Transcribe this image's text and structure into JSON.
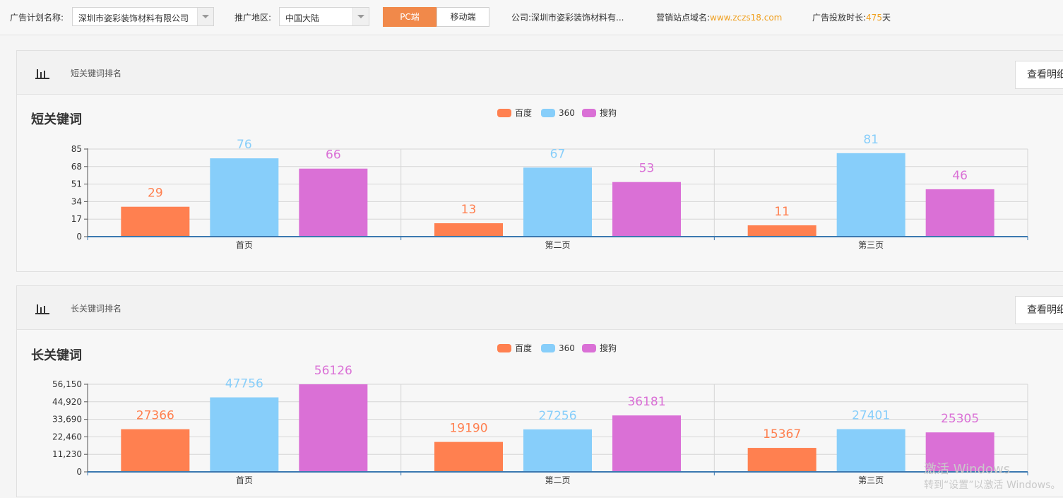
{
  "topbar": {
    "plan_label": "广告计划名称:",
    "plan_value": "深圳市姿彩装饰材料有限公司",
    "region_label": "推广地区:",
    "region_value": "中国大陆",
    "pc_label": "PC端",
    "mobile_label": "移动端",
    "company_label": "公司:",
    "company_value": "深圳市姿彩装饰材料有...",
    "domain_label": "营销站点域名:",
    "domain_value": "www.zczs18.com",
    "duration_label": "广告投放时长:",
    "duration_value": "475",
    "duration_unit": "天"
  },
  "colors": {
    "baidu": "#ff8050",
    "s360": "#87cefa",
    "sogou": "#da70d6",
    "accent": "#f1894a"
  },
  "panels": [
    {
      "header_title": "短关键词排名",
      "detail_button": "查看明细",
      "chart_title": "短关键词"
    },
    {
      "header_title": "长关键词排名",
      "detail_button": "查看明细",
      "chart_title": "长关键词"
    }
  ],
  "chart_data": [
    {
      "type": "bar",
      "title": "短关键词",
      "categories": [
        "首页",
        "第二页",
        "第三页"
      ],
      "series": [
        {
          "name": "百度",
          "values": [
            29,
            13,
            11
          ]
        },
        {
          "name": "360",
          "values": [
            76,
            67,
            81
          ]
        },
        {
          "name": "搜狗",
          "values": [
            66,
            53,
            46
          ]
        }
      ],
      "yticks": [
        "0",
        "17",
        "34",
        "51",
        "68",
        "85"
      ],
      "ylim": [
        0,
        85
      ],
      "legend": "top-center",
      "grid": true
    },
    {
      "type": "bar",
      "title": "长关键词",
      "categories": [
        "首页",
        "第二页",
        "第三页"
      ],
      "series": [
        {
          "name": "百度",
          "values": [
            27366,
            19190,
            15367
          ]
        },
        {
          "name": "360",
          "values": [
            47756,
            27256,
            27401
          ]
        },
        {
          "name": "搜狗",
          "values": [
            56126,
            36181,
            25305
          ]
        }
      ],
      "yticks": [
        "0",
        "11,230",
        "22,460",
        "33,690",
        "44,920",
        "56,150"
      ],
      "ylim": [
        0,
        56150
      ],
      "legend": "top-center",
      "grid": true
    }
  ],
  "watermark": {
    "line1": "激活 Windows",
    "line2": "转到“设置”以激活 Windows。"
  }
}
